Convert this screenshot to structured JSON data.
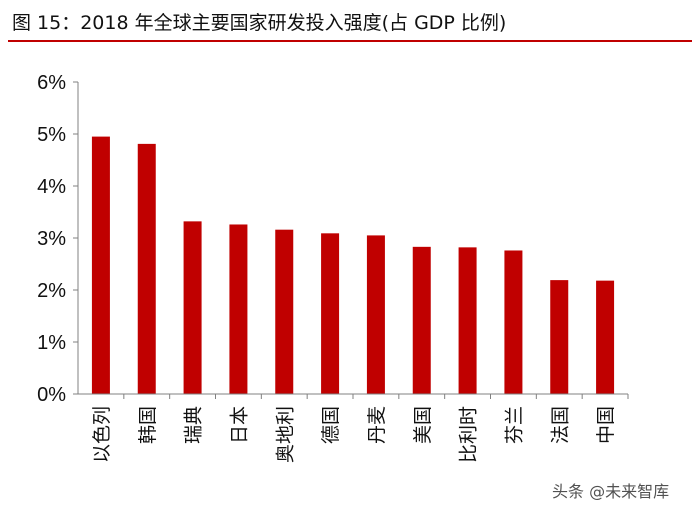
{
  "title": "图 15：2018 年全球主要国家研发投入强度(占 GDP 比例)",
  "watermark": "头条 @未来智库",
  "colors": {
    "bar": "#c00000",
    "accent_rule": "#c00000",
    "axis": "#808080"
  },
  "chart_data": {
    "type": "bar",
    "title": "2018 年全球主要国家研发投入强度(占 GDP 比例)",
    "xlabel": "",
    "ylabel": "",
    "ylim": [
      0,
      6
    ],
    "y_ticks": [
      "0%",
      "1%",
      "2%",
      "3%",
      "4%",
      "5%",
      "6%"
    ],
    "categories": [
      "以色列",
      "韩国",
      "瑞典",
      "日本",
      "奥地利",
      "德国",
      "丹麦",
      "美国",
      "比利时",
      "芬兰",
      "法国",
      "中国"
    ],
    "values": [
      4.95,
      4.81,
      3.32,
      3.26,
      3.16,
      3.09,
      3.05,
      2.83,
      2.82,
      2.76,
      2.19,
      2.18
    ],
    "grid": false,
    "legend": "none"
  }
}
